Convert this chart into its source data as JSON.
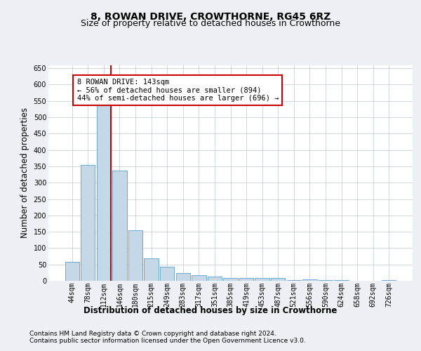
{
  "title": "8, ROWAN DRIVE, CROWTHORNE, RG45 6RZ",
  "subtitle": "Size of property relative to detached houses in Crowthorne",
  "xlabel": "Distribution of detached houses by size in Crowthorne",
  "ylabel": "Number of detached properties",
  "categories": [
    "44sqm",
    "78sqm",
    "112sqm",
    "146sqm",
    "180sqm",
    "215sqm",
    "249sqm",
    "283sqm",
    "317sqm",
    "351sqm",
    "385sqm",
    "419sqm",
    "453sqm",
    "487sqm",
    "521sqm",
    "556sqm",
    "590sqm",
    "624sqm",
    "658sqm",
    "692sqm",
    "726sqm"
  ],
  "values": [
    58,
    355,
    538,
    338,
    155,
    68,
    42,
    23,
    18,
    12,
    9,
    8,
    9,
    8,
    2,
    4,
    2,
    3,
    1,
    1,
    3
  ],
  "bar_color": "#c5d8e8",
  "bar_edge_color": "#6aaad4",
  "highlight_line_color": "#cc0000",
  "highlight_bar_index": 2,
  "annotation_text": "8 ROWAN DRIVE: 143sqm\n← 56% of detached houses are smaller (894)\n44% of semi-detached houses are larger (696) →",
  "annotation_box_color": "#ffffff",
  "annotation_box_edge": "#cc0000",
  "ylim": [
    0,
    660
  ],
  "yticks": [
    0,
    50,
    100,
    150,
    200,
    250,
    300,
    350,
    400,
    450,
    500,
    550,
    600,
    650
  ],
  "footer_line1": "Contains HM Land Registry data © Crown copyright and database right 2024.",
  "footer_line2": "Contains public sector information licensed under the Open Government Licence v3.0.",
  "bg_color": "#edf1f5",
  "plot_bg_color": "#ffffff",
  "grid_color": "#c8d0d8",
  "title_fontsize": 10,
  "subtitle_fontsize": 9,
  "axis_label_fontsize": 8.5,
  "tick_fontsize": 7,
  "footer_fontsize": 6.5,
  "annotation_fontsize": 7.5
}
